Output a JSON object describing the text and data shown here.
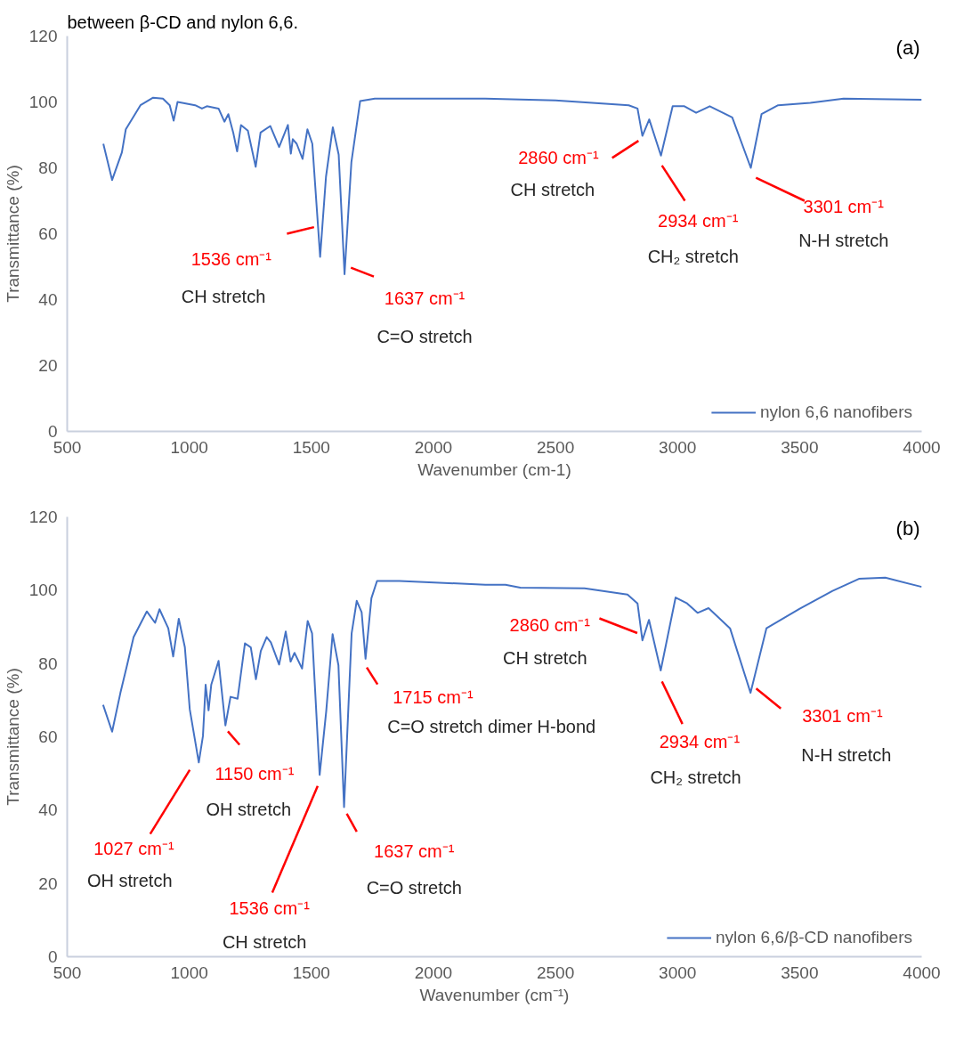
{
  "chart_data": [
    {
      "type": "line",
      "title": "between β-CD and nylon 6,6.",
      "xlabel": "Wavenumber (cm-1)",
      "ylabel": "Transmittance (%)",
      "xlim": [
        500,
        4000
      ],
      "ylim": [
        0,
        120
      ],
      "xticks": [
        500,
        1000,
        1500,
        2000,
        2500,
        3000,
        3500,
        4000
      ],
      "yticks": [
        0,
        20,
        40,
        60,
        80,
        100,
        120
      ],
      "grid": false,
      "legend": "bottom right",
      "series": [
        {
          "name": "nylon 6,6 nanofibers",
          "color": "#4472c4",
          "x": [
            648,
            684,
            724,
            740,
            800,
            852,
            892,
            920,
            936,
            952,
            1024,
            1052,
            1072,
            1120,
            1144,
            1160,
            1180,
            1196,
            1212,
            1240,
            1272,
            1292,
            1332,
            1368,
            1404,
            1416,
            1424,
            1440,
            1464,
            1484,
            1504,
            1536,
            1560,
            1588,
            1612,
            1636,
            1664,
            1700,
            1760,
            2000,
            2212,
            2500,
            2800,
            2836,
            2856,
            2884,
            2932,
            2980,
            3028,
            3076,
            3132,
            3224,
            3300,
            3344,
            3412,
            3544,
            3680,
            4000
          ],
          "values": [
            87.3,
            76.3,
            84.7,
            91.7,
            99,
            101.3,
            101,
            99,
            94.3,
            100,
            99,
            98,
            98.7,
            98,
            94,
            96.3,
            90.7,
            85,
            93,
            91.3,
            80.3,
            90.7,
            92.7,
            86.3,
            93,
            84.3,
            88.7,
            87.3,
            82.7,
            91.7,
            87.3,
            53,
            77.3,
            92.3,
            84,
            47.7,
            81.7,
            100.3,
            101,
            101,
            101,
            100.5,
            99,
            98,
            89.7,
            94.7,
            83.7,
            98.7,
            98.7,
            96.7,
            98.7,
            95.3,
            80,
            96.3,
            99,
            99.7,
            101,
            100.7
          ]
        }
      ],
      "annotations": [
        "(a)",
        {
          "text": "1536 cm⁻¹\nCH stretch",
          "x": 1536,
          "y": 53
        },
        {
          "text": "1637 cm⁻¹\nC=O stretch",
          "x": 1637,
          "y": 47.7
        },
        {
          "text": "2860 cm⁻¹\nCH stretch",
          "x": 2860,
          "y": 89.7
        },
        "2934 cm⁻¹\nCH₂ stretch",
        "3301 cm⁻¹\nN-H stretch"
      ]
    },
    {
      "type": "line",
      "xlabel": "Wavenumber (cm⁻¹)",
      "ylabel": "Transmittance (%)",
      "xlim": [
        500,
        4000
      ],
      "ylim": [
        0,
        120
      ],
      "xticks": [
        500,
        1000,
        1500,
        2000,
        2500,
        3000,
        3500,
        4000
      ],
      "yticks": [
        0,
        20,
        40,
        60,
        80,
        100,
        120
      ],
      "grid": false,
      "legend": "bottom right",
      "series": [
        {
          "name": "nylon 6,6/β-CD nanofibers",
          "color": "#4472c4",
          "x": [
            647,
            684,
            718,
            745,
            772,
            826,
            860,
            878,
            914,
            934,
            957,
            982,
            1002,
            1039,
            1056,
            1067,
            1079,
            1090,
            1120,
            1148,
            1169,
            1198,
            1228,
            1252,
            1273,
            1293,
            1317,
            1334,
            1368,
            1395,
            1415,
            1431,
            1462,
            1485,
            1503,
            1534,
            1561,
            1587,
            1611,
            1634,
            1665,
            1686,
            1706,
            1722,
            1746,
            1769,
            1861,
            2213,
            2295,
            2356,
            2619,
            2795,
            2836,
            2856,
            2883,
            2931,
            2992,
            3039,
            3082,
            3127,
            3215,
            3299,
            3364,
            3499,
            3635,
            3743,
            3851,
            4000
          ],
          "values": [
            68.7,
            61.4,
            72,
            79.5,
            87.2,
            94.2,
            91.1,
            94.8,
            89.6,
            81.9,
            92.2,
            84.4,
            67.5,
            53,
            60.2,
            74.2,
            67.2,
            74.2,
            80.7,
            63.1,
            70.9,
            70.4,
            85.5,
            84.4,
            75.7,
            83.4,
            87.2,
            85.8,
            79.7,
            88.7,
            80.5,
            82.9,
            78.6,
            91.6,
            88.2,
            49.6,
            67,
            88,
            79.5,
            40.8,
            88.2,
            97.1,
            94,
            81.3,
            97.8,
            102.5,
            102.5,
            101.5,
            101.5,
            100.7,
            100.5,
            98.8,
            96.4,
            86.3,
            91.9,
            78.1,
            98,
            96.4,
            93.8,
            95.1,
            89.6,
            72,
            89.6,
            94.9,
            99.8,
            103.1,
            103.4,
            100.9
          ]
        }
      ],
      "annotations": [
        "(b)",
        "1027 cm⁻¹\nOH stretch",
        {
          "text": "1150 cm⁻¹\nOH stretch",
          "x": 1150,
          "y": 63
        },
        "1536 cm⁻¹\nCH stretch",
        {
          "text": "1637 cm⁻¹\nC=O stretch",
          "x": 1637,
          "y": 40.8
        },
        {
          "text": "1715 cm⁻¹\nC=O stretch dimer H-bond",
          "x": 1715,
          "y": 81.3
        },
        {
          "text": "2860 cm⁻¹\nCH stretch",
          "x": 2860,
          "y": 86.3
        },
        "2934 cm⁻¹\nCH₂ stretch",
        {
          "text": "3301 cm⁻¹\nN-H stretch",
          "x": 3301,
          "y": 72
        }
      ]
    }
  ]
}
